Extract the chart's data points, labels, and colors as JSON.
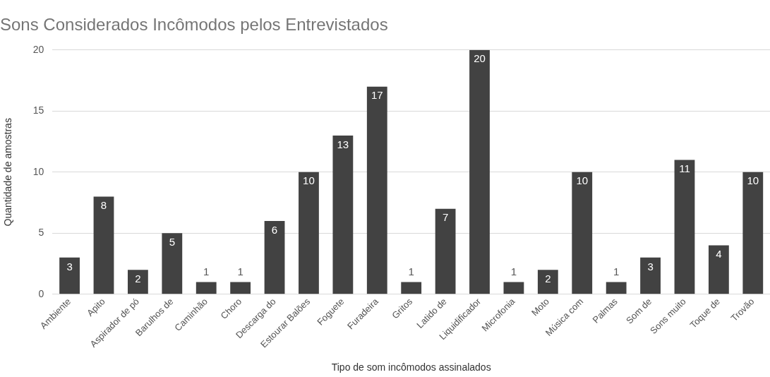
{
  "chart_data": {
    "type": "bar",
    "title": "Sons Considerados Incômodos pelos Entrevistados",
    "xlabel": "Tipo de som incômodos assinalados",
    "ylabel": "Quantidade de amostras",
    "categories": [
      "Ambiente",
      "Apito",
      "Aspirador de pó",
      "Barulhos de",
      "Caminhão",
      "Choro",
      "Descarga do",
      "Estourar Balões",
      "Foguete",
      "Furadeira",
      "Gritos",
      "Latido de",
      "Liquidificador",
      "Microfonia",
      "Moto",
      "Música com",
      "Palmas",
      "Som de",
      "Sons muito",
      "Toque de",
      "Trovão"
    ],
    "values": [
      3,
      8,
      2,
      5,
      1,
      1,
      6,
      10,
      13,
      17,
      1,
      7,
      20,
      1,
      2,
      10,
      1,
      3,
      11,
      4,
      10
    ],
    "color": "#424242",
    "ylim": [
      0,
      20
    ],
    "yticks": [
      0,
      5,
      10,
      15,
      20
    ],
    "grid": "y",
    "data_labels": true,
    "legend": false
  }
}
